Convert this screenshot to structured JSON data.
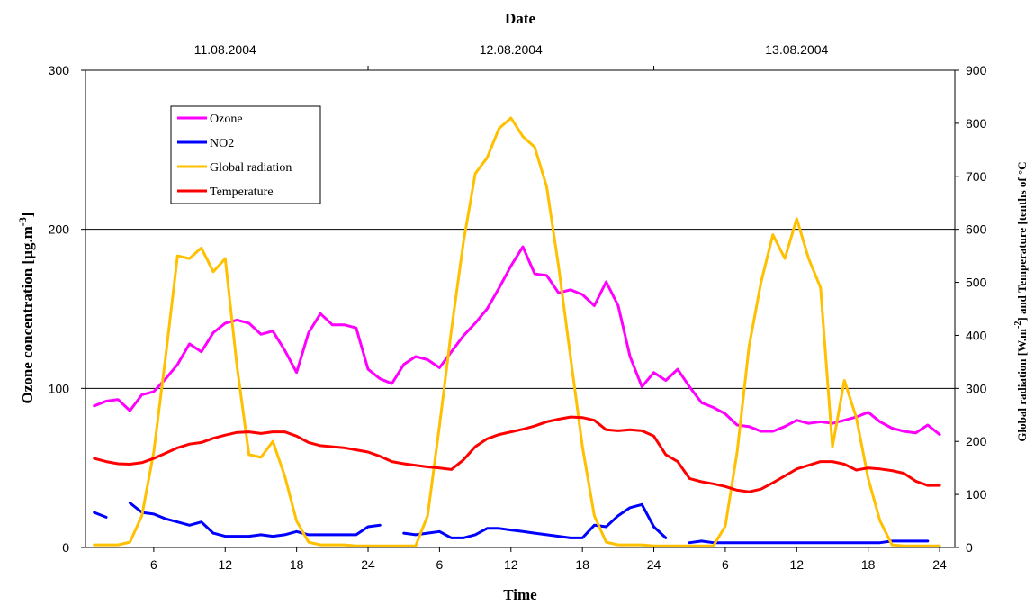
{
  "chart_data": {
    "type": "line",
    "title": "Date",
    "xlabel": "Time",
    "ylabel": "Ozone concentration [µg.m",
    "ylabel_sup": "-3",
    "ylabel_end": "]",
    "y2label_part1": "Global radiation [W.m",
    "y2label_sup": "-2",
    "y2label_part2": "] and Temperature [tenths of °C",
    "dates": [
      "11.08.2004",
      "12.08.2004",
      "13.08.2004"
    ],
    "x_tick_labels": [
      "6",
      "12",
      "18",
      "24",
      "6",
      "12",
      "18",
      "24",
      "6",
      "12",
      "18",
      "24"
    ],
    "x_tick_hours": [
      6,
      12,
      18,
      24,
      30,
      36,
      42,
      48,
      54,
      60,
      66,
      72
    ],
    "xlim": [
      0,
      72.5
    ],
    "ylim": [
      0,
      300
    ],
    "y_ticks": [
      0,
      100,
      200,
      300
    ],
    "y2lim": [
      0,
      900
    ],
    "y2_ticks": [
      0,
      100,
      200,
      300,
      400,
      500,
      600,
      700,
      800,
      900
    ],
    "gridlines_y": [
      100,
      200
    ],
    "legend_position": "top-left",
    "series": [
      {
        "name": "Ozone",
        "color": "#ff00ff",
        "axis": "left",
        "x": [
          1,
          2,
          3,
          4,
          5,
          6,
          7,
          8,
          9,
          10,
          11,
          12,
          13,
          14,
          15,
          16,
          17,
          18,
          19,
          20,
          21,
          22,
          23,
          24,
          25,
          26,
          27,
          28,
          29,
          30,
          31,
          32,
          33,
          34,
          35,
          36,
          37,
          38,
          39,
          40,
          41,
          42,
          43,
          44,
          45,
          46,
          47,
          48,
          49,
          50,
          51,
          52,
          53,
          54,
          55,
          56,
          57,
          58,
          59,
          60,
          61,
          62,
          63,
          64,
          65,
          66,
          67,
          68,
          69,
          70,
          71,
          72
        ],
        "values": [
          89,
          92,
          93,
          86,
          96,
          98,
          106,
          115,
          128,
          123,
          135,
          141,
          143,
          141,
          134,
          136,
          124,
          110,
          135,
          147,
          140,
          140,
          138,
          112,
          106,
          103,
          115,
          120,
          118,
          113,
          123,
          133,
          141,
          150,
          163,
          177,
          189,
          172,
          171,
          160,
          162,
          159,
          152,
          167,
          152,
          120,
          101,
          110,
          105,
          112,
          101,
          91,
          88,
          84,
          77,
          76,
          73,
          73,
          76,
          80,
          78,
          79,
          78,
          80,
          82,
          85,
          79,
          75,
          73,
          72,
          77,
          71
        ]
      },
      {
        "name": "NO2",
        "color": "#0000ff",
        "axis": "left",
        "x": [
          1,
          2,
          null,
          4,
          5,
          6,
          7,
          8,
          9,
          10,
          11,
          12,
          13,
          14,
          15,
          16,
          17,
          18,
          19,
          20,
          21,
          22,
          23,
          24,
          25,
          null,
          27,
          28,
          29,
          30,
          31,
          32,
          33,
          34,
          35,
          36,
          37,
          38,
          39,
          40,
          41,
          42,
          43,
          44,
          45,
          46,
          47,
          48,
          49,
          null,
          51,
          52,
          53,
          54,
          55,
          56,
          57,
          58,
          59,
          60,
          61,
          62,
          63,
          64,
          65,
          66,
          67,
          68,
          69,
          70,
          71
        ],
        "values": [
          22,
          19,
          null,
          28,
          22,
          21,
          18,
          16,
          14,
          16,
          9,
          7,
          7,
          7,
          8,
          7,
          8,
          10,
          8,
          8,
          8,
          8,
          8,
          13,
          14,
          null,
          9,
          8,
          9,
          10,
          6,
          6,
          8,
          12,
          12,
          11,
          10,
          9,
          8,
          7,
          6,
          6,
          14,
          13,
          20,
          25,
          27,
          13,
          6,
          null,
          3,
          4,
          3,
          3,
          3,
          3,
          3,
          3,
          3,
          3,
          3,
          3,
          3,
          3,
          3,
          3,
          3,
          4,
          4,
          4,
          4
        ]
      },
      {
        "name": "Global radiation",
        "color": "#ffc000",
        "axis": "right",
        "x": [
          1,
          2,
          3,
          4,
          5,
          6,
          7,
          8,
          9,
          10,
          11,
          12,
          13,
          14,
          15,
          16,
          17,
          18,
          19,
          20,
          21,
          22,
          23,
          24,
          25,
          26,
          27,
          28,
          29,
          30,
          31,
          32,
          33,
          34,
          35,
          36,
          37,
          38,
          39,
          40,
          41,
          42,
          43,
          44,
          45,
          46,
          47,
          48,
          49,
          50,
          51,
          52,
          53,
          54,
          55,
          56,
          57,
          58,
          59,
          60,
          61,
          62,
          63,
          64,
          65,
          66,
          67,
          68,
          69,
          70,
          71,
          72
        ],
        "values": [
          5,
          5,
          5,
          10,
          60,
          180,
          360,
          550,
          545,
          565,
          520,
          545,
          340,
          175,
          170,
          200,
          135,
          50,
          10,
          5,
          5,
          5,
          3,
          3,
          3,
          3,
          3,
          3,
          60,
          230,
          410,
          575,
          705,
          735,
          790,
          810,
          775,
          755,
          680,
          530,
          360,
          190,
          60,
          10,
          5,
          5,
          5,
          3,
          3,
          3,
          3,
          3,
          3,
          40,
          180,
          380,
          500,
          590,
          545,
          620,
          545,
          490,
          190,
          315,
          245,
          130,
          50,
          5,
          3,
          3,
          3,
          3
        ]
      },
      {
        "name": "Temperature",
        "color": "#ff0000",
        "axis": "right",
        "x": [
          1,
          2,
          3,
          4,
          5,
          6,
          7,
          8,
          9,
          10,
          11,
          12,
          13,
          14,
          15,
          16,
          17,
          18,
          19,
          20,
          21,
          22,
          23,
          24,
          25,
          26,
          27,
          28,
          29,
          30,
          31,
          32,
          33,
          34,
          35,
          36,
          37,
          38,
          39,
          40,
          41,
          42,
          43,
          44,
          45,
          46,
          47,
          48,
          49,
          50,
          51,
          52,
          53,
          54,
          55,
          56,
          57,
          58,
          59,
          60,
          61,
          62,
          63,
          64,
          65,
          66,
          67,
          68,
          69,
          70,
          71,
          72
        ],
        "values": [
          168,
          162,
          158,
          157,
          160,
          168,
          178,
          188,
          195,
          198,
          206,
          212,
          217,
          218,
          215,
          218,
          218,
          210,
          198,
          192,
          190,
          188,
          184,
          180,
          172,
          162,
          158,
          155,
          152,
          150,
          147,
          165,
          190,
          205,
          213,
          218,
          223,
          229,
          237,
          242,
          246,
          245,
          240,
          222,
          220,
          222,
          220,
          210,
          175,
          162,
          130,
          124,
          120,
          115,
          108,
          105,
          110,
          122,
          135,
          148,
          155,
          162,
          162,
          157,
          146,
          150,
          148,
          145,
          140,
          125,
          117,
          117
        ]
      }
    ]
  }
}
